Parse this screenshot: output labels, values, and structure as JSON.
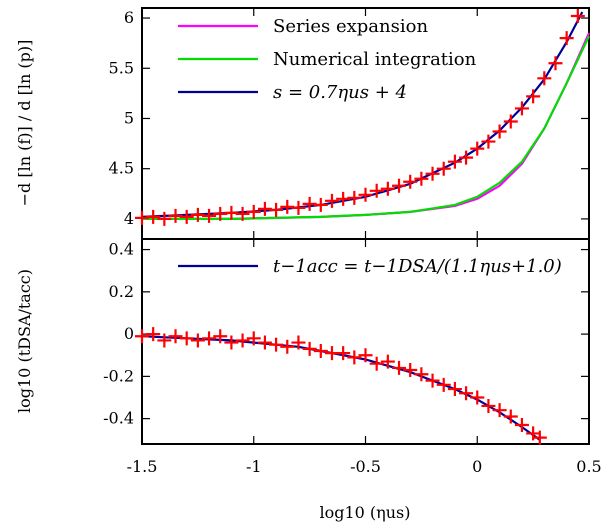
{
  "chart_data": [
    {
      "type": "line",
      "xlim": [
        -1.5,
        0.5
      ],
      "ylim": [
        3.8,
        6.1
      ],
      "yticks": [
        "4",
        "4.5",
        "5",
        "5.5",
        "6"
      ],
      "ylabel": "−d [ln (f)] / d [ln (p)]",
      "grid": false,
      "legend_position": "top-left",
      "series": [
        {
          "name": "Series expansion",
          "color": "#ff00ff",
          "x": [
            -1.5,
            -1.3,
            -1.1,
            -0.9,
            -0.7,
            -0.5,
            -0.3,
            -0.1,
            0.0,
            0.1,
            0.2,
            0.3,
            0.4,
            0.5
          ],
          "y": [
            4.0,
            4.0,
            4.0,
            4.01,
            4.02,
            4.04,
            4.07,
            4.13,
            4.2,
            4.33,
            4.55,
            4.9,
            5.35,
            5.85
          ]
        },
        {
          "name": "Numerical integration",
          "color": "#00dd00",
          "x": [
            -1.5,
            -1.3,
            -1.1,
            -0.9,
            -0.7,
            -0.5,
            -0.3,
            -0.1,
            0.0,
            0.1,
            0.2,
            0.3,
            0.4,
            0.5
          ],
          "y": [
            4.0,
            4.0,
            4.0,
            4.01,
            4.02,
            4.04,
            4.07,
            4.14,
            4.22,
            4.36,
            4.57,
            4.9,
            5.35,
            5.82
          ]
        },
        {
          "name": "s = 0.7ηus + 4",
          "color": "#000099",
          "x": [
            -1.5,
            -1.3,
            -1.1,
            -0.9,
            -0.7,
            -0.5,
            -0.3,
            -0.1,
            0.0,
            0.1,
            0.2,
            0.3,
            0.4,
            0.47
          ],
          "y": [
            4.02,
            4.04,
            4.06,
            4.09,
            4.14,
            4.22,
            4.35,
            4.56,
            4.7,
            4.88,
            5.11,
            5.39,
            5.76,
            6.06
          ]
        },
        {
          "name": "",
          "style": "markers",
          "color": "#ff0000",
          "x": [
            -1.5,
            -1.45,
            -1.4,
            -1.35,
            -1.3,
            -1.25,
            -1.2,
            -1.15,
            -1.1,
            -1.05,
            -1.0,
            -0.95,
            -0.9,
            -0.85,
            -0.8,
            -0.75,
            -0.7,
            -0.65,
            -0.6,
            -0.55,
            -0.5,
            -0.45,
            -0.4,
            -0.35,
            -0.3,
            -0.25,
            -0.2,
            -0.15,
            -0.1,
            -0.05,
            0.0,
            0.05,
            0.1,
            0.15,
            0.2,
            0.25,
            0.3,
            0.35,
            0.4,
            0.45
          ],
          "y": [
            4.01,
            4.02,
            4.0,
            4.03,
            4.02,
            4.04,
            4.03,
            4.05,
            4.06,
            4.05,
            4.07,
            4.1,
            4.09,
            4.12,
            4.11,
            4.15,
            4.14,
            4.18,
            4.2,
            4.21,
            4.24,
            4.28,
            4.3,
            4.33,
            4.37,
            4.4,
            4.45,
            4.5,
            4.57,
            4.61,
            4.7,
            4.77,
            4.87,
            4.97,
            5.1,
            5.22,
            5.4,
            5.55,
            5.8,
            6.02
          ]
        }
      ]
    },
    {
      "type": "line",
      "xlim": [
        -1.5,
        0.5
      ],
      "ylim": [
        -0.52,
        0.45
      ],
      "xticks": [
        "-1.5",
        "-1",
        "-0.5",
        "0",
        "0.5"
      ],
      "yticks": [
        "0.4",
        "0.2",
        "0",
        "-0.2",
        "-0.4"
      ],
      "xlabel": "log10 (ηus)",
      "ylabel": "log10 (tDSA/tacc)",
      "grid": false,
      "legend_position": "top-center",
      "series": [
        {
          "name": "t−1acc = t−1DSA/(1.1ηus+1.0)",
          "color": "#000099",
          "x": [
            -1.5,
            -1.4,
            -1.3,
            -1.2,
            -1.1,
            -1.0,
            -0.9,
            -0.8,
            -0.7,
            -0.6,
            -0.5,
            -0.4,
            -0.3,
            -0.2,
            -0.1,
            0.0,
            0.1,
            0.2,
            0.28
          ],
          "y": [
            -0.01,
            -0.015,
            -0.02,
            -0.025,
            -0.03,
            -0.04,
            -0.05,
            -0.06,
            -0.08,
            -0.1,
            -0.12,
            -0.15,
            -0.18,
            -0.22,
            -0.26,
            -0.31,
            -0.37,
            -0.44,
            -0.5
          ]
        },
        {
          "name": "",
          "style": "markers",
          "color": "#ff0000",
          "x": [
            -1.5,
            -1.45,
            -1.4,
            -1.35,
            -1.3,
            -1.25,
            -1.2,
            -1.15,
            -1.1,
            -1.05,
            -1.0,
            -0.95,
            -0.9,
            -0.85,
            -0.8,
            -0.75,
            -0.7,
            -0.65,
            -0.6,
            -0.55,
            -0.5,
            -0.45,
            -0.4,
            -0.35,
            -0.3,
            -0.25,
            -0.2,
            -0.15,
            -0.1,
            -0.05,
            0.0,
            0.05,
            0.1,
            0.15,
            0.2,
            0.25,
            0.28
          ],
          "y": [
            -0.01,
            0.0,
            -0.03,
            -0.01,
            -0.02,
            -0.03,
            -0.02,
            -0.01,
            -0.04,
            -0.03,
            -0.02,
            -0.04,
            -0.05,
            -0.06,
            -0.04,
            -0.07,
            -0.08,
            -0.09,
            -0.09,
            -0.11,
            -0.1,
            -0.14,
            -0.13,
            -0.16,
            -0.17,
            -0.19,
            -0.22,
            -0.24,
            -0.26,
            -0.28,
            -0.3,
            -0.34,
            -0.36,
            -0.39,
            -0.43,
            -0.47,
            -0.49
          ]
        }
      ]
    }
  ]
}
